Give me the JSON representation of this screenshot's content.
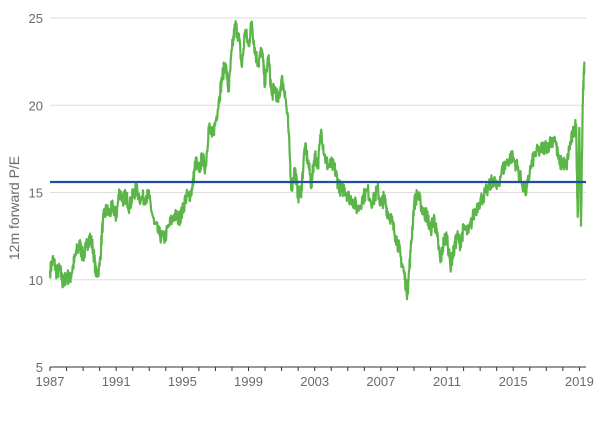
{
  "chart_data": {
    "type": "line",
    "ylabel": "12m forward P/E",
    "xlabel": "",
    "title": "",
    "xlim": [
      1987,
      2019.4
    ],
    "ylim": [
      5,
      25
    ],
    "yticks": [
      5,
      10,
      15,
      20,
      25
    ],
    "xticks": [
      1987,
      1991,
      1995,
      1999,
      2003,
      2007,
      2011,
      2015,
      2019
    ],
    "grid": "horizontal",
    "colors": {
      "series": "#5bb548",
      "reference": "#1f4e9e",
      "grid": "#dddddd",
      "axis": "#333333"
    },
    "reference_line": {
      "y": 15.6
    },
    "series": [
      {
        "x": [
          1987.0,
          1987.2,
          1987.4,
          1987.6,
          1987.8,
          1988.0,
          1988.2,
          1988.4,
          1988.6,
          1988.8,
          1989.0,
          1989.2,
          1989.4,
          1989.6,
          1989.8,
          1990.0,
          1990.2,
          1990.4,
          1990.6,
          1990.8,
          1991.0,
          1991.2,
          1991.4,
          1991.6,
          1991.8,
          1992.0,
          1992.2,
          1992.5,
          1992.8,
          1993.0,
          1993.3,
          1993.6,
          1993.9,
          1994.2,
          1994.5,
          1994.8,
          1995.0,
          1995.2,
          1995.4,
          1995.6,
          1995.8,
          1996.0,
          1996.2,
          1996.4,
          1996.6,
          1996.8,
          1997.0,
          1997.2,
          1997.4,
          1997.6,
          1997.8,
          1998.0,
          1998.2,
          1998.4,
          1998.6,
          1998.8,
          1999.0,
          1999.2,
          1999.4,
          1999.6,
          1999.8,
          2000.0,
          2000.2,
          2000.4,
          2000.6,
          2000.8,
          2001.0,
          2001.2,
          2001.4,
          2001.6,
          2001.8,
          2002.0,
          2002.2,
          2002.4,
          2002.6,
          2002.8,
          2003.0,
          2003.2,
          2003.4,
          2003.6,
          2003.8,
          2004.0,
          2004.2,
          2004.4,
          2004.6,
          2004.8,
          2005.0,
          2005.3,
          2005.6,
          2005.9,
          2006.2,
          2006.5,
          2006.8,
          2007.0,
          2007.2,
          2007.4,
          2007.6,
          2007.8,
          2008.0,
          2008.2,
          2008.4,
          2008.6,
          2008.8,
          2009.0,
          2009.2,
          2009.4,
          2009.6,
          2009.8,
          2010.0,
          2010.2,
          2010.4,
          2010.6,
          2010.8,
          2011.0,
          2011.2,
          2011.4,
          2011.6,
          2011.8,
          2012.0,
          2012.3,
          2012.6,
          2012.9,
          2013.2,
          2013.5,
          2013.8,
          2014.0,
          2014.3,
          2014.6,
          2014.9,
          2015.2,
          2015.5,
          2015.8,
          2016.0,
          2016.3,
          2016.6,
          2016.9,
          2017.2,
          2017.5,
          2017.8,
          2018.0,
          2018.2,
          2018.4,
          2018.6,
          2018.8,
          2018.9,
          2019.0,
          2019.1,
          2019.2,
          2019.3
        ],
        "y": [
          10.5,
          11.2,
          10.4,
          10.6,
          9.7,
          10.3,
          10.0,
          10.8,
          11.6,
          12.0,
          11.3,
          11.9,
          12.5,
          11.8,
          10.2,
          10.8,
          13.4,
          14.0,
          13.8,
          14.2,
          13.6,
          15.1,
          14.6,
          14.8,
          14.2,
          14.8,
          15.2,
          14.6,
          14.8,
          14.7,
          13.2,
          12.6,
          12.3,
          13.1,
          13.7,
          13.5,
          13.9,
          14.7,
          14.8,
          15.2,
          16.8,
          16.2,
          17.0,
          16.4,
          18.8,
          18.2,
          19.0,
          20.2,
          21.6,
          22.4,
          20.8,
          23.2,
          24.6,
          24.0,
          22.2,
          24.3,
          23.4,
          24.8,
          23.0,
          22.4,
          23.2,
          21.2,
          22.8,
          20.6,
          21.0,
          20.2,
          21.5,
          20.8,
          18.8,
          15.2,
          16.4,
          14.8,
          15.2,
          17.6,
          16.8,
          15.4,
          17.2,
          16.6,
          18.6,
          17.1,
          16.5,
          16.6,
          16.4,
          15.6,
          15.1,
          15.3,
          14.8,
          14.6,
          14.0,
          14.7,
          15.1,
          14.4,
          15.2,
          14.3,
          14.7,
          13.9,
          13.6,
          12.8,
          12.2,
          11.3,
          10.4,
          9.2,
          11.6,
          14.3,
          14.9,
          14.4,
          13.8,
          13.7,
          12.8,
          13.6,
          12.5,
          11.0,
          12.2,
          12.5,
          10.8,
          11.6,
          12.5,
          12.1,
          12.9,
          12.7,
          13.7,
          14.4,
          14.8,
          15.2,
          15.8,
          15.2,
          16.2,
          16.7,
          17.1,
          16.6,
          15.6,
          15.0,
          16.2,
          17.2,
          17.4,
          17.6,
          17.8,
          18.2,
          16.6,
          16.8,
          16.4,
          17.6,
          18.3,
          18.9,
          13.6,
          18.7,
          13.1,
          20.1,
          22.5
        ]
      }
    ]
  }
}
